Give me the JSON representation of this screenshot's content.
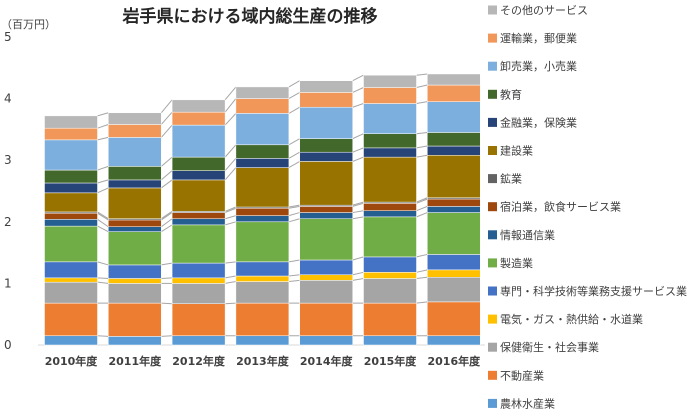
{
  "chart_data": {
    "type": "bar",
    "stacked": true,
    "title": "岩手県における域内総生産の推移",
    "ylabel": "（百万円）",
    "xlabel": "",
    "ylim": [
      0,
      5
    ],
    "yticks": [
      0,
      1,
      2,
      3,
      4,
      5
    ],
    "grid": false,
    "legend": "right",
    "categories": [
      "2010年度",
      "2011年度",
      "2012年度",
      "2013年度",
      "2014年度",
      "2015年度",
      "2016年度"
    ],
    "series": [
      {
        "name": "農林水産業",
        "color": "#5b9bd5",
        "values": [
          0.15,
          0.14,
          0.15,
          0.15,
          0.15,
          0.15,
          0.15
        ]
      },
      {
        "name": "不動産業",
        "color": "#ed7d31",
        "values": [
          0.53,
          0.54,
          0.52,
          0.53,
          0.53,
          0.53,
          0.55
        ]
      },
      {
        "name": "保健衛生・社会事業",
        "color": "#a5a5a5",
        "values": [
          0.34,
          0.32,
          0.33,
          0.35,
          0.37,
          0.4,
          0.4
        ]
      },
      {
        "name": "電気・ガス・熱供給・水道業",
        "color": "#ffc000",
        "values": [
          0.07,
          0.08,
          0.09,
          0.09,
          0.09,
          0.1,
          0.12
        ]
      },
      {
        "name": "専門・科学技術等業務支援サービス業",
        "color": "#4472c4",
        "values": [
          0.26,
          0.22,
          0.24,
          0.23,
          0.24,
          0.25,
          0.25
        ]
      },
      {
        "name": "製造業",
        "color": "#70ad47",
        "values": [
          0.58,
          0.54,
          0.62,
          0.65,
          0.67,
          0.65,
          0.68
        ]
      },
      {
        "name": "情報通信業",
        "color": "#255e91",
        "values": [
          0.11,
          0.08,
          0.1,
          0.1,
          0.1,
          0.1,
          0.1
        ]
      },
      {
        "name": "宿泊業，飲食サービス業",
        "color": "#9e480e",
        "values": [
          0.1,
          0.11,
          0.1,
          0.12,
          0.1,
          0.12,
          0.12
        ]
      },
      {
        "name": "鉱業",
        "color": "#636363",
        "values": [
          0.02,
          0.02,
          0.02,
          0.02,
          0.02,
          0.02,
          0.02
        ]
      },
      {
        "name": "建設業",
        "color": "#997300",
        "values": [
          0.31,
          0.5,
          0.51,
          0.64,
          0.71,
          0.73,
          0.69
        ]
      },
      {
        "name": "金融業，保険業",
        "color": "#264478",
        "values": [
          0.16,
          0.13,
          0.15,
          0.15,
          0.15,
          0.15,
          0.15
        ]
      },
      {
        "name": "教育",
        "color": "#43682b",
        "values": [
          0.21,
          0.22,
          0.22,
          0.22,
          0.22,
          0.23,
          0.22
        ]
      },
      {
        "name": "卸売業，小売業",
        "color": "#7cafdd",
        "values": [
          0.49,
          0.47,
          0.52,
          0.51,
          0.51,
          0.49,
          0.5
        ]
      },
      {
        "name": "運輸業，郵便業",
        "color": "#f1975a",
        "values": [
          0.19,
          0.21,
          0.21,
          0.24,
          0.24,
          0.26,
          0.27
        ]
      },
      {
        "name": "その他のサービス",
        "color": "#b7b7b7",
        "values": [
          0.2,
          0.19,
          0.2,
          0.19,
          0.19,
          0.2,
          0.18
        ]
      }
    ]
  }
}
